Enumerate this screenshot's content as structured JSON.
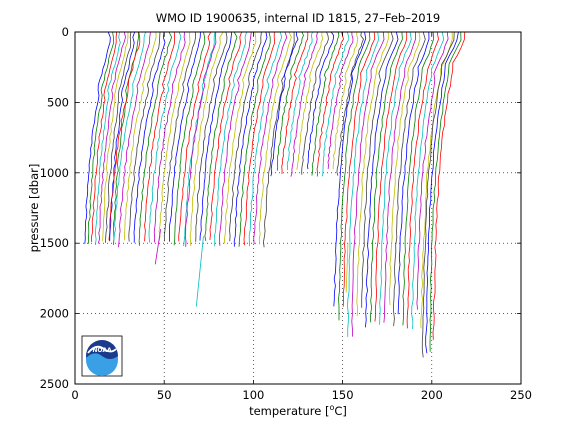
{
  "chart_data": {
    "type": "line",
    "title": "WMO ID 1900635, internal ID 1815, 27–Feb–2019",
    "xlabel_pre": "temperature [",
    "xlabel_unit": "C]",
    "xlabel_degree": "o",
    "ylabel": "pressure [dbar]",
    "xlim": [
      0,
      250
    ],
    "ylim": [
      0,
      2500
    ],
    "y_reversed": true,
    "x_ticks": [
      0,
      50,
      100,
      150,
      200,
      250
    ],
    "y_ticks": [
      0,
      500,
      1000,
      1500,
      2000,
      2500
    ],
    "grid": "dotted",
    "profile_offset_note_not_shown": "",
    "groups": [
      {
        "x_start": 6,
        "x_end": 22,
        "count": 9,
        "top_t": 18,
        "depth": 1500,
        "break_p": 450
      },
      {
        "x_start": 23,
        "x_end": 65,
        "count": 16,
        "top_t": 22,
        "depth": 1500,
        "break_p": 400
      },
      {
        "x_start": 66,
        "x_end": 110,
        "count": 17,
        "top_t": 22,
        "depth": 1500,
        "break_p": 350
      },
      {
        "x_start": 111,
        "x_end": 148,
        "count": 14,
        "top_t": 21,
        "depth": 1000,
        "break_p": 320
      },
      {
        "x_start": 149,
        "x_end": 198,
        "count": 20,
        "top_t": 20,
        "depth": 2050,
        "break_p": 300
      },
      {
        "x_start": 199,
        "x_end": 205,
        "count": 4,
        "top_t": 20,
        "depth": 2250,
        "break_p": 250
      }
    ],
    "outliers": [
      {
        "x_top": 72,
        "p_top": 1450,
        "x_bottom": 68,
        "p_bottom": 1950
      },
      {
        "x_top": 48,
        "p_top": 1400,
        "x_bottom": 45,
        "p_bottom": 1650
      },
      {
        "x_top": 153,
        "p_top": 1500,
        "x_bottom": 152,
        "p_bottom": 1850
      }
    ],
    "series_colors": [
      "#0000ff",
      "#008000",
      "#ff0000",
      "#00bfbf",
      "#bf00bf",
      "#bfbf00",
      "#404040"
    ]
  },
  "logo": {
    "text": "NOAA"
  }
}
